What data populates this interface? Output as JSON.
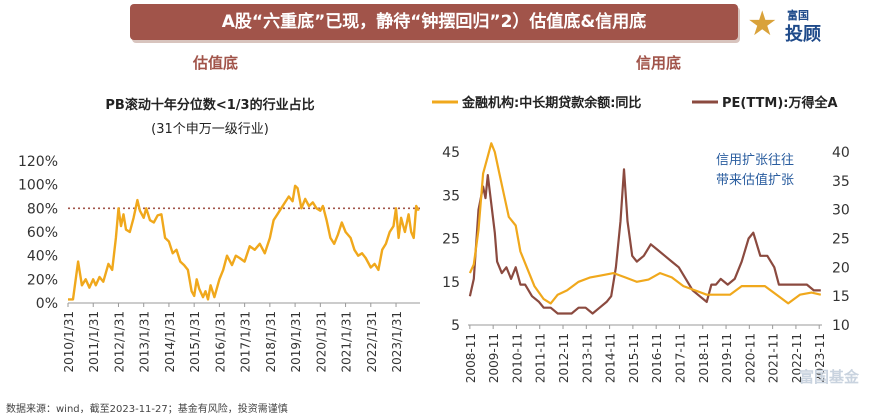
{
  "header": {
    "title": "A股“六重底”已现，静待“钟摆回归”2）估值底&信用底"
  },
  "logo": {
    "line1": "富国",
    "line2": "投顾"
  },
  "watermark": "富国基金",
  "footer": {
    "source": "数据来源：wind，截至2023-11-27；基金有风险，投资需谨慎"
  },
  "chart_data": [
    {
      "type": "line",
      "section": "估值底",
      "title": "PB滚动十年分位数<1/3的行业占比",
      "subtitle": "(31个申万一级行业)",
      "color": "#f0a81c",
      "ref_color": "#a1544a",
      "reference_line": 0.8,
      "ylim": [
        0,
        1.2
      ],
      "xlim": [
        2010.0,
        2023.95
      ],
      "yticks": [
        "0%",
        "20%",
        "40%",
        "60%",
        "80%",
        "100%",
        "120%"
      ],
      "xticks": [
        "2010/1/31",
        "2011/1/31",
        "2012/1/31",
        "2013/1/31",
        "2014/1/31",
        "2015/1/31",
        "2016/1/31",
        "2017/1/31",
        "2018/1/31",
        "2019/1/31",
        "2020/1/31",
        "2021/1/31",
        "2022/1/31",
        "2023/1/31"
      ],
      "x": [
        2010.0,
        2010.2,
        2010.4,
        2010.55,
        2010.7,
        2010.85,
        2011.0,
        2011.1,
        2011.25,
        2011.4,
        2011.6,
        2011.75,
        2011.9,
        2012.0,
        2012.1,
        2012.2,
        2012.3,
        2012.45,
        2012.6,
        2012.75,
        2012.85,
        2013.0,
        2013.1,
        2013.25,
        2013.4,
        2013.55,
        2013.7,
        2013.85,
        2014.0,
        2014.15,
        2014.3,
        2014.45,
        2014.6,
        2014.75,
        2014.9,
        2015.0,
        2015.1,
        2015.2,
        2015.35,
        2015.45,
        2015.55,
        2015.65,
        2015.8,
        2016.0,
        2016.15,
        2016.3,
        2016.5,
        2016.65,
        2016.8,
        2017.0,
        2017.2,
        2017.4,
        2017.6,
        2017.8,
        2018.0,
        2018.15,
        2018.3,
        2018.45,
        2018.6,
        2018.75,
        2018.9,
        2019.0,
        2019.1,
        2019.25,
        2019.4,
        2019.55,
        2019.7,
        2019.85,
        2020.0,
        2020.1,
        2020.25,
        2020.4,
        2020.55,
        2020.7,
        2020.85,
        2021.0,
        2021.2,
        2021.35,
        2021.5,
        2021.65,
        2021.8,
        2022.0,
        2022.15,
        2022.3,
        2022.45,
        2022.6,
        2022.75,
        2022.9,
        2023.0,
        2023.1,
        2023.2,
        2023.35,
        2023.5,
        2023.6,
        2023.7,
        2023.8,
        2023.9
      ],
      "y": [
        0.03,
        0.03,
        0.35,
        0.15,
        0.2,
        0.13,
        0.2,
        0.15,
        0.22,
        0.18,
        0.33,
        0.28,
        0.55,
        0.8,
        0.65,
        0.75,
        0.62,
        0.6,
        0.72,
        0.87,
        0.78,
        0.72,
        0.8,
        0.7,
        0.68,
        0.74,
        0.75,
        0.55,
        0.52,
        0.42,
        0.45,
        0.35,
        0.32,
        0.28,
        0.1,
        0.06,
        0.2,
        0.12,
        0.05,
        0.1,
        0.03,
        0.15,
        0.05,
        0.2,
        0.28,
        0.4,
        0.32,
        0.4,
        0.38,
        0.35,
        0.48,
        0.45,
        0.5,
        0.42,
        0.55,
        0.7,
        0.75,
        0.8,
        0.85,
        0.9,
        0.86,
        0.99,
        0.97,
        0.8,
        0.88,
        0.82,
        0.85,
        0.8,
        0.78,
        0.82,
        0.7,
        0.55,
        0.5,
        0.58,
        0.68,
        0.6,
        0.55,
        0.45,
        0.4,
        0.42,
        0.38,
        0.3,
        0.33,
        0.28,
        0.45,
        0.5,
        0.6,
        0.65,
        0.8,
        0.55,
        0.72,
        0.6,
        0.75,
        0.6,
        0.55,
        0.82,
        0.78
      ]
    },
    {
      "type": "line",
      "section": "信用底",
      "annotation": [
        "信用扩张往往",
        "带来估值扩张"
      ],
      "legend_position": "top",
      "xticks": [
        "2008-11",
        "2009-11",
        "2010-11",
        "2011-11",
        "2012-11",
        "2013-11",
        "2014-11",
        "2015-11",
        "2016-11",
        "2017-11",
        "2018-11",
        "2019-11",
        "2020-11",
        "2021-11",
        "2022-11",
        "2023-11"
      ],
      "xlim": [
        2008.75,
        2023.95
      ],
      "y_left": {
        "lim": [
          5,
          45
        ],
        "ticks": [
          "5",
          "15",
          "25",
          "35",
          "45"
        ]
      },
      "y_right": {
        "lim": [
          10,
          40
        ],
        "ticks": [
          "10",
          "15",
          "20",
          "25",
          "30",
          "35",
          "40"
        ]
      },
      "series": [
        {
          "name": "金融机构:中长期贷款余额:同比",
          "axis": "left",
          "color": "#f0a81c",
          "x": [
            2008.83,
            2009.0,
            2009.2,
            2009.4,
            2009.6,
            2009.75,
            2009.9,
            2010.1,
            2010.3,
            2010.5,
            2010.8,
            2011.0,
            2011.3,
            2011.6,
            2012.0,
            2012.3,
            2012.6,
            2013.0,
            2013.5,
            2014.0,
            2014.5,
            2015.0,
            2015.5,
            2016.0,
            2016.5,
            2017.0,
            2017.5,
            2018.0,
            2018.5,
            2019.0,
            2019.5,
            2020.0,
            2020.5,
            2021.0,
            2021.5,
            2022.0,
            2022.5,
            2023.0,
            2023.5,
            2023.9
          ],
          "values": [
            17,
            19,
            27,
            40,
            44,
            47,
            45,
            40,
            35,
            30,
            28,
            22,
            18,
            14,
            11,
            10,
            12,
            13,
            15,
            16,
            16.5,
            17,
            16,
            15,
            15.5,
            17,
            16,
            14,
            13,
            12,
            12,
            12,
            14,
            14,
            14,
            12,
            10,
            12,
            12.5,
            12
          ]
        },
        {
          "name": "PE(TTM):万得全A",
          "axis": "right",
          "color": "#8b4a3f",
          "x": [
            2008.83,
            2009.0,
            2009.2,
            2009.4,
            2009.5,
            2009.6,
            2009.75,
            2009.9,
            2010.0,
            2010.2,
            2010.4,
            2010.6,
            2010.8,
            2011.0,
            2011.2,
            2011.5,
            2011.8,
            2012.0,
            2012.3,
            2012.6,
            2012.9,
            2013.2,
            2013.5,
            2013.8,
            2014.1,
            2014.4,
            2014.7,
            2014.9,
            2015.1,
            2015.3,
            2015.45,
            2015.6,
            2015.8,
            2016.0,
            2016.3,
            2016.6,
            2016.9,
            2017.2,
            2017.5,
            2017.8,
            2018.1,
            2018.4,
            2018.7,
            2019.0,
            2019.2,
            2019.4,
            2019.6,
            2019.9,
            2020.2,
            2020.5,
            2020.8,
            2021.0,
            2021.3,
            2021.6,
            2021.9,
            2022.1,
            2022.4,
            2022.7,
            2023.0,
            2023.3,
            2023.6,
            2023.9
          ],
          "values": [
            15,
            18,
            30,
            34,
            32,
            36,
            31,
            26,
            21,
            19,
            20,
            18,
            20,
            17,
            17,
            15,
            14,
            13,
            13,
            12,
            12,
            12,
            13,
            13,
            12,
            13,
            14,
            15,
            20,
            28,
            37,
            28,
            22,
            21,
            22,
            24,
            23,
            22,
            21,
            20,
            18,
            16,
            15,
            14,
            17,
            17,
            18,
            17,
            18,
            21,
            25,
            26,
            22,
            22,
            20,
            17,
            17,
            17,
            17,
            17,
            16,
            16
          ]
        }
      ]
    }
  ]
}
